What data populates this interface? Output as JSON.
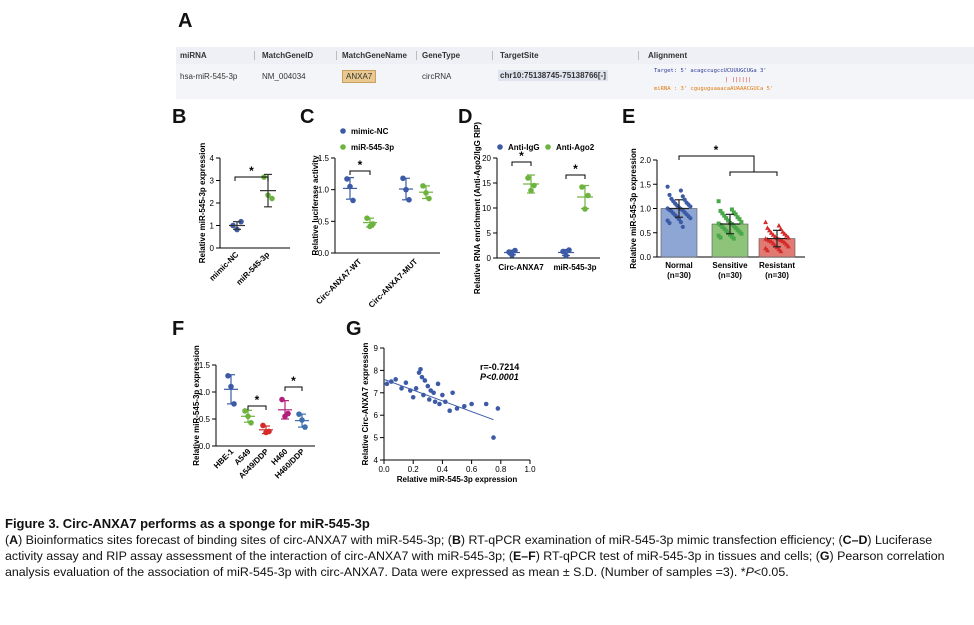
{
  "panels": {
    "A": "A",
    "B": "B",
    "C": "C",
    "D": "D",
    "E": "E",
    "F": "F",
    "G": "G"
  },
  "table": {
    "headers": [
      "miRNA",
      "MatchGeneID",
      "MatchGeneName",
      "GeneType",
      "TargetSite",
      "Alignment"
    ],
    "row": {
      "mirna": "hsa-miR-545-3p",
      "gene_id": "NM_004034",
      "gene_name": "ANXA7",
      "gene_type": "circRNA",
      "target_site": "chr10:75138745-75138766[-]",
      "align_target": "Target: 5' acagccugccUCUUUGCUGa 3'",
      "align_bars": "| ||||||",
      "align_mirna": "miRNA : 3' cguguguaaacaAUAAACGUCa 5'"
    }
  },
  "chart_data": [
    {
      "panel": "B",
      "type": "scatter",
      "categories": [
        "mimic-NC",
        "miR-545-3p"
      ],
      "ylabel": "Relative miR-545-3p expression",
      "ylim": [
        0,
        4
      ],
      "yticks": [
        0,
        1,
        2,
        3,
        4
      ],
      "colors": [
        "#3c5aa6",
        "#6db33f"
      ],
      "groups": [
        {
          "name": "mimic-NC",
          "points": [
            1.0,
            0.82,
            1.17
          ],
          "mean": 1.0,
          "sd": 0.17
        },
        {
          "name": "miR-545-3p",
          "points": [
            3.15,
            2.35,
            2.2
          ],
          "mean": 2.55,
          "sd": 0.72
        }
      ],
      "significance": [
        {
          "from": 0,
          "to": 1,
          "label": "*"
        }
      ]
    },
    {
      "panel": "C",
      "type": "scatter",
      "legend": [
        "mimic-NC",
        "miR-545-3p"
      ],
      "legend_position": "top",
      "categories": [
        "Circ-ANXA7-WT",
        "Circ-ANXA7-MUT"
      ],
      "ylabel": "Relative luciferase activity",
      "ylim": [
        0,
        1.5
      ],
      "yticks": [
        0.0,
        0.5,
        1.0,
        1.5
      ],
      "colors": [
        "#3c5aa6",
        "#6db33f"
      ],
      "groups": [
        {
          "name": "mimic-NC WT",
          "x": 0,
          "series": 0,
          "points": [
            1.17,
            1.05,
            0.83
          ],
          "mean": 1.02,
          "sd": 0.17
        },
        {
          "name": "miR-545-3p WT",
          "x": 0,
          "series": 1,
          "points": [
            0.55,
            0.42,
            0.46
          ],
          "mean": 0.48,
          "sd": 0.07
        },
        {
          "name": "mimic-NC MUT",
          "x": 1,
          "series": 0,
          "points": [
            1.18,
            1.0,
            0.84
          ],
          "mean": 1.01,
          "sd": 0.17
        },
        {
          "name": "miR-545-3p MUT",
          "x": 1,
          "series": 1,
          "points": [
            1.06,
            0.95,
            0.86
          ],
          "mean": 0.96,
          "sd": 0.1
        }
      ],
      "significance": [
        {
          "x": 0,
          "label": "*"
        }
      ]
    },
    {
      "panel": "D",
      "type": "scatter",
      "legend": [
        "Anti-IgG",
        "Anti-Ago2"
      ],
      "legend_position": "top",
      "categories": [
        "Circ-ANXA7",
        "miR-545-3p"
      ],
      "ylabel": "Relative RNA enrichment (Anti-Ago2/IgG RIP)",
      "ylim": [
        0,
        20
      ],
      "yticks": [
        0,
        5,
        10,
        15,
        20
      ],
      "colors": [
        "#3c5aa6",
        "#6db33f"
      ],
      "groups": [
        {
          "name": "Anti-IgG Circ-ANXA7",
          "x": 0,
          "series": 0,
          "points": [
            1.2,
            0.6,
            1.5
          ],
          "mean": 1.1,
          "sd": 0.45
        },
        {
          "name": "Anti-Ago2 Circ-ANXA7",
          "x": 0,
          "series": 1,
          "points": [
            16.0,
            13.5,
            14.5
          ],
          "mean": 14.8,
          "sd": 1.8
        },
        {
          "name": "Anti-IgG miR-545-3p",
          "x": 1,
          "series": 0,
          "points": [
            1.3,
            0.5,
            1.6
          ],
          "mean": 1.1,
          "sd": 0.6
        },
        {
          "name": "Anti-Ago2 miR-545-3p",
          "x": 1,
          "series": 1,
          "points": [
            14.2,
            9.8,
            12.5
          ],
          "mean": 12.2,
          "sd": 2.3
        }
      ],
      "significance": [
        {
          "x": 0,
          "label": "*"
        },
        {
          "x": 1,
          "label": "*"
        }
      ]
    },
    {
      "panel": "E",
      "type": "bar",
      "categories": [
        "Normal",
        "Sensitive",
        "Resistant"
      ],
      "sublabels": [
        "(n=30)",
        "(n=30)",
        "(n=30)"
      ],
      "values": [
        1.0,
        0.68,
        0.38
      ],
      "sd": [
        0.18,
        0.2,
        0.17
      ],
      "ylabel": "Relative miR-545-3p expression",
      "ylim": [
        0,
        2.0
      ],
      "yticks": [
        0.0,
        0.5,
        1.0,
        1.5,
        2.0
      ],
      "colors": [
        "#8da6d4",
        "#8dc47a",
        "#e07a73"
      ],
      "point_colors": [
        "#3c5aa6",
        "#4aa84a",
        "#d42a2a"
      ],
      "point_shapes": [
        "circle",
        "square",
        "triangle"
      ],
      "points": [
        [
          1.45,
          1.37,
          1.28,
          1.25,
          1.2,
          1.18,
          1.15,
          1.12,
          1.1,
          1.08,
          1.06,
          1.04,
          1.02,
          1.0,
          0.99,
          0.97,
          0.96,
          0.94,
          0.92,
          0.9,
          0.88,
          0.86,
          0.84,
          0.82,
          0.8,
          0.78,
          0.75,
          0.72,
          0.7,
          0.62
        ],
        [
          1.15,
          0.98,
          0.95,
          0.92,
          0.9,
          0.88,
          0.85,
          0.82,
          0.8,
          0.78,
          0.75,
          0.72,
          0.7,
          0.69,
          0.68,
          0.66,
          0.64,
          0.62,
          0.6,
          0.58,
          0.56,
          0.54,
          0.52,
          0.5,
          0.48,
          0.46,
          0.44,
          0.42,
          0.4,
          0.38
        ],
        [
          0.72,
          0.65,
          0.6,
          0.58,
          0.55,
          0.52,
          0.5,
          0.48,
          0.46,
          0.44,
          0.42,
          0.4,
          0.39,
          0.38,
          0.37,
          0.36,
          0.35,
          0.34,
          0.33,
          0.32,
          0.3,
          0.28,
          0.26,
          0.24,
          0.22,
          0.2,
          0.18,
          0.16,
          0.14,
          0.12
        ]
      ],
      "significance_label": "*"
    },
    {
      "panel": "F",
      "type": "scatter",
      "categories": [
        "HBE-1",
        "A549",
        "A549/DDP",
        "H460",
        "H460/DDP"
      ],
      "ylabel": "Relative miR-545-3p expression",
      "ylim": [
        0,
        1.5
      ],
      "yticks": [
        0.0,
        0.5,
        1.0,
        1.5
      ],
      "colors": [
        "#3c5aa6",
        "#6db33f",
        "#d42a2a",
        "#b0207a",
        "#3f6fb0"
      ],
      "groups": [
        {
          "name": "HBE-1",
          "points": [
            1.3,
            1.1,
            0.78
          ],
          "mean": 1.05,
          "sd": 0.27
        },
        {
          "name": "A549",
          "points": [
            0.65,
            0.55,
            0.43
          ],
          "mean": 0.55,
          "sd": 0.11
        },
        {
          "name": "A549/DDP",
          "points": [
            0.38,
            0.25,
            0.27
          ],
          "mean": 0.3,
          "sd": 0.07
        },
        {
          "name": "H460",
          "points": [
            0.86,
            0.55,
            0.6
          ],
          "mean": 0.67,
          "sd": 0.17
        },
        {
          "name": "H460/DDP",
          "points": [
            0.59,
            0.48,
            0.35
          ],
          "mean": 0.47,
          "sd": 0.12
        }
      ],
      "significance": [
        {
          "from": 1,
          "to": 2,
          "label": "*"
        },
        {
          "from": 3,
          "to": 4,
          "label": "*"
        }
      ]
    },
    {
      "panel": "G",
      "type": "scatter",
      "xlabel": "Relative miR-545-3p expression",
      "ylabel": "Relative Circ-ANXA7 expression",
      "xlim": [
        0.0,
        1.0
      ],
      "ylim": [
        4,
        9
      ],
      "xticks": [
        0.0,
        0.2,
        0.4,
        0.6,
        0.8,
        1.0
      ],
      "yticks": [
        4,
        5,
        6,
        7,
        8,
        9
      ],
      "color": "#3c5aa6",
      "annotation": [
        "r=-0.7214",
        "P<0.0001"
      ],
      "x": [
        0.02,
        0.05,
        0.08,
        0.12,
        0.15,
        0.18,
        0.2,
        0.22,
        0.24,
        0.25,
        0.26,
        0.27,
        0.28,
        0.3,
        0.31,
        0.32,
        0.34,
        0.35,
        0.37,
        0.38,
        0.4,
        0.42,
        0.45,
        0.47,
        0.5,
        0.55,
        0.6,
        0.7,
        0.75,
        0.78
      ],
      "y": [
        7.4,
        7.5,
        7.6,
        7.2,
        7.45,
        7.1,
        6.8,
        7.2,
        7.9,
        8.05,
        7.7,
        6.9,
        7.55,
        7.3,
        6.7,
        7.1,
        7.0,
        6.6,
        7.4,
        6.5,
        6.9,
        6.6,
        6.2,
        7.0,
        6.3,
        6.4,
        6.5,
        6.5,
        5.0,
        6.3
      ],
      "fit": {
        "x": [
          0.0,
          0.75
        ],
        "y": [
          7.6,
          5.8
        ]
      }
    }
  ],
  "caption": {
    "title": "Figure 3. Circ-ANXA7 performs as a sponge for miR-545-3p",
    "A_label": "A",
    "A_text": " Bioinformatics sites forecast of binding sites of circ-ANXA7 with miR-545-3p; (",
    "B_label": "B",
    "B_text": ") RT-qPCR examination of miR-545-3p mimic transfection efficiency; (",
    "CD_label": "C–D",
    "CD_text": ") Luciferase activity assay and RIP assay assessment of the interaction of circ-ANXA7 with miR-545-3p; (",
    "EF_label": "E–F",
    "EF_text": ") RT-qPCR test of miR-545-3p in tissues and cells; (",
    "G_label": "G",
    "G_text": ") Pearson correlation analysis evaluation of the association of miR-545-3p with circ-ANXA7. Data were expressed as mean ± S.D. (Number of samples =3). *",
    "p_text": "P",
    "end_text": "<0.05."
  }
}
